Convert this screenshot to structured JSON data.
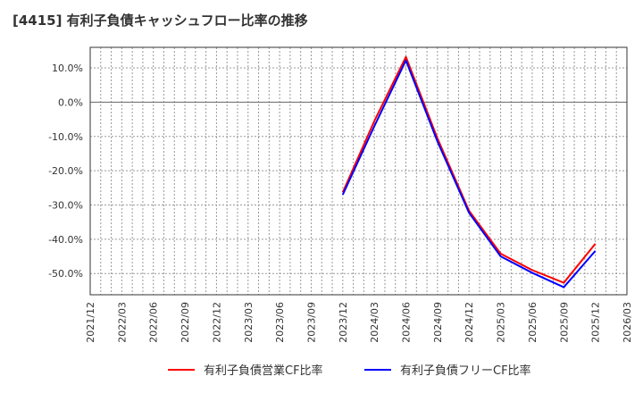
{
  "title": "[4415]  有利子負債キャッシュフロー比率の推移",
  "chart_data": {
    "type": "line",
    "title": "[4415]  有利子負債キャッシュフロー比率の推移",
    "x": [
      "2021/12",
      "2022/03",
      "2022/06",
      "2022/09",
      "2022/12",
      "2023/03",
      "2023/06",
      "2023/09",
      "2023/12",
      "2024/03",
      "2024/06",
      "2024/09",
      "2024/12",
      "2025/03",
      "2025/06",
      "2025/09",
      "2025/12",
      "2026/03"
    ],
    "yticks": [
      "10.0%",
      "0.0%",
      "-10.0%",
      "-20.0%",
      "-30.0%",
      "-40.0%",
      "-50.0%"
    ],
    "ytick_values": [
      10,
      0,
      -10,
      -20,
      -30,
      -40,
      -50
    ],
    "ylim": [
      -56.2,
      16
    ],
    "grid": true,
    "legend_position": "bottom",
    "series": [
      {
        "name": "有利子負債営業CF比率",
        "color": "#ff0000",
        "values": [
          null,
          null,
          null,
          null,
          null,
          null,
          null,
          null,
          -26.3,
          -5.5,
          13.2,
          -10.6,
          -31.7,
          -44.2,
          -49.0,
          -52.7,
          -41.3,
          null
        ]
      },
      {
        "name": "有利子負債フリーCF比率",
        "color": "#0000ff",
        "values": [
          null,
          null,
          null,
          null,
          null,
          null,
          null,
          null,
          -27.0,
          -7.0,
          12.2,
          -11.5,
          -32.3,
          -45.0,
          -49.8,
          -54.0,
          -43.4,
          null
        ]
      }
    ]
  }
}
